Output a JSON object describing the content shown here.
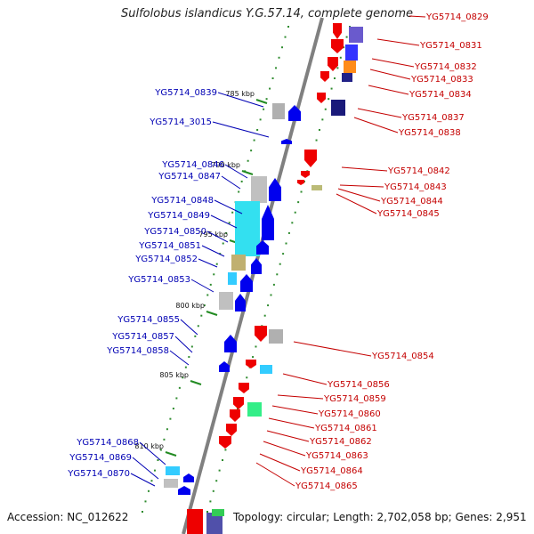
{
  "title": "Sulfolobus islandicus Y.G.57.14, complete genome",
  "footer": {
    "accession": "Accession: NC_012622",
    "info": "Topology: circular; Length: 2,702,058 bp; Genes: 2,951"
  },
  "colors": {
    "forward": "#0000ee",
    "reverse": "#ee0000",
    "label_blue": "#0000b4",
    "label_red": "#c40000",
    "kbp_mark": "#228b22"
  },
  "kbp_marks": [
    "785 kbp",
    "790 kbp",
    "795 kbp",
    "800 kbp",
    "805 kbp",
    "810 kbp"
  ],
  "genes_left": [
    "YG5714_0839",
    "YG5714_3015",
    "YG5714_0846",
    "YG5714_0847",
    "YG5714_0848",
    "YG5714_0849",
    "YG5714_0850",
    "YG5714_0851",
    "YG5714_0852",
    "YG5714_0853",
    "YG5714_0855",
    "YG5714_0857",
    "YG5714_0858",
    "YG5714_0868",
    "YG5714_0869",
    "YG5714_0870"
  ],
  "genes_right": [
    "YG5714_0829",
    "YG5714_0831",
    "YG5714_0832",
    "YG5714_0833",
    "YG5714_0834",
    "YG5714_0837",
    "YG5714_0838",
    "YG5714_0842",
    "YG5714_0843",
    "YG5714_0844",
    "YG5714_0845",
    "YG5714_0854",
    "YG5714_0856",
    "YG5714_0859",
    "YG5714_0860",
    "YG5714_0861",
    "YG5714_0862",
    "YG5714_0863",
    "YG5714_0864",
    "YG5714_0865"
  ]
}
